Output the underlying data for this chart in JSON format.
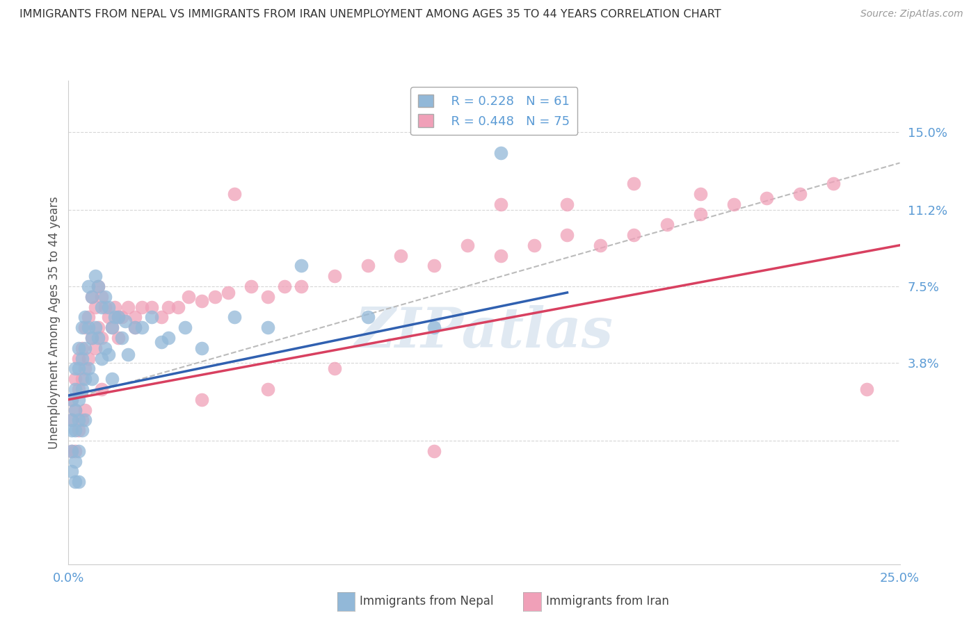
{
  "title": "IMMIGRANTS FROM NEPAL VS IMMIGRANTS FROM IRAN UNEMPLOYMENT AMONG AGES 35 TO 44 YEARS CORRELATION CHART",
  "source": "Source: ZipAtlas.com",
  "ylabel": "Unemployment Among Ages 35 to 44 years",
  "xlim": [
    0.0,
    0.25
  ],
  "ylim": [
    -0.06,
    0.175
  ],
  "yticks": [
    0.0,
    0.038,
    0.075,
    0.112,
    0.15
  ],
  "ytick_labels": [
    "",
    "3.8%",
    "7.5%",
    "11.2%",
    "15.0%"
  ],
  "xticks": [
    0.0,
    0.25
  ],
  "xtick_labels": [
    "0.0%",
    "25.0%"
  ],
  "nepal_R": 0.228,
  "nepal_N": 61,
  "iran_R": 0.448,
  "iran_N": 75,
  "nepal_color": "#92b8d8",
  "iran_color": "#f0a0b8",
  "nepal_line_color": "#3060b0",
  "iran_line_color": "#d84060",
  "ref_line_color": "#bbbbbb",
  "background_color": "#ffffff",
  "grid_color": "#cccccc",
  "title_color": "#333333",
  "tick_color": "#5b9bd5",
  "watermark": "ZIPatlas",
  "nepal_scatter_x": [
    0.001,
    0.001,
    0.001,
    0.001,
    0.001,
    0.002,
    0.002,
    0.002,
    0.002,
    0.002,
    0.002,
    0.003,
    0.003,
    0.003,
    0.003,
    0.003,
    0.003,
    0.004,
    0.004,
    0.004,
    0.004,
    0.005,
    0.005,
    0.005,
    0.005,
    0.006,
    0.006,
    0.006,
    0.007,
    0.007,
    0.007,
    0.008,
    0.008,
    0.009,
    0.009,
    0.01,
    0.01,
    0.011,
    0.011,
    0.012,
    0.012,
    0.013,
    0.013,
    0.014,
    0.015,
    0.016,
    0.017,
    0.018,
    0.02,
    0.022,
    0.025,
    0.028,
    0.03,
    0.035,
    0.04,
    0.05,
    0.06,
    0.07,
    0.09,
    0.11,
    0.13
  ],
  "nepal_scatter_y": [
    0.02,
    0.01,
    0.005,
    -0.005,
    -0.015,
    0.035,
    0.025,
    0.015,
    0.005,
    -0.01,
    -0.02,
    0.045,
    0.035,
    0.02,
    0.01,
    -0.005,
    -0.02,
    0.055,
    0.04,
    0.025,
    0.005,
    0.06,
    0.045,
    0.03,
    0.01,
    0.075,
    0.055,
    0.035,
    0.07,
    0.05,
    0.03,
    0.08,
    0.055,
    0.075,
    0.05,
    0.065,
    0.04,
    0.07,
    0.045,
    0.065,
    0.042,
    0.055,
    0.03,
    0.06,
    0.06,
    0.05,
    0.058,
    0.042,
    0.055,
    0.055,
    0.06,
    0.048,
    0.05,
    0.055,
    0.045,
    0.06,
    0.055,
    0.085,
    0.06,
    0.055,
    0.14
  ],
  "iran_scatter_x": [
    0.001,
    0.001,
    0.001,
    0.002,
    0.002,
    0.002,
    0.003,
    0.003,
    0.003,
    0.004,
    0.004,
    0.004,
    0.005,
    0.005,
    0.005,
    0.006,
    0.006,
    0.007,
    0.007,
    0.008,
    0.008,
    0.009,
    0.009,
    0.01,
    0.01,
    0.011,
    0.012,
    0.013,
    0.014,
    0.015,
    0.016,
    0.018,
    0.02,
    0.022,
    0.025,
    0.028,
    0.03,
    0.033,
    0.036,
    0.04,
    0.044,
    0.048,
    0.055,
    0.06,
    0.065,
    0.07,
    0.08,
    0.09,
    0.1,
    0.11,
    0.12,
    0.13,
    0.14,
    0.15,
    0.16,
    0.17,
    0.18,
    0.19,
    0.2,
    0.21,
    0.22,
    0.23,
    0.17,
    0.19,
    0.13,
    0.15,
    0.08,
    0.11,
    0.06,
    0.04,
    0.02,
    0.015,
    0.01,
    0.05,
    0.24
  ],
  "iran_scatter_y": [
    0.02,
    0.01,
    -0.005,
    0.03,
    0.015,
    -0.005,
    0.04,
    0.025,
    0.005,
    0.045,
    0.03,
    0.01,
    0.055,
    0.035,
    0.015,
    0.06,
    0.04,
    0.07,
    0.05,
    0.065,
    0.045,
    0.075,
    0.055,
    0.07,
    0.05,
    0.065,
    0.06,
    0.055,
    0.065,
    0.06,
    0.06,
    0.065,
    0.06,
    0.065,
    0.065,
    0.06,
    0.065,
    0.065,
    0.07,
    0.068,
    0.07,
    0.072,
    0.075,
    0.07,
    0.075,
    0.075,
    0.08,
    0.085,
    0.09,
    0.085,
    0.095,
    0.09,
    0.095,
    0.1,
    0.095,
    0.1,
    0.105,
    0.11,
    0.115,
    0.118,
    0.12,
    0.125,
    0.125,
    0.12,
    0.115,
    0.115,
    0.035,
    -0.005,
    0.025,
    0.02,
    0.055,
    0.05,
    0.025,
    0.12,
    0.025
  ],
  "nepal_line_x": [
    0.0,
    0.15
  ],
  "nepal_line_y": [
    0.022,
    0.072
  ],
  "iran_line_x": [
    0.0,
    0.25
  ],
  "iran_line_y": [
    0.02,
    0.095
  ],
  "ref_line_x": [
    0.0,
    0.25
  ],
  "ref_line_y": [
    0.02,
    0.135
  ]
}
